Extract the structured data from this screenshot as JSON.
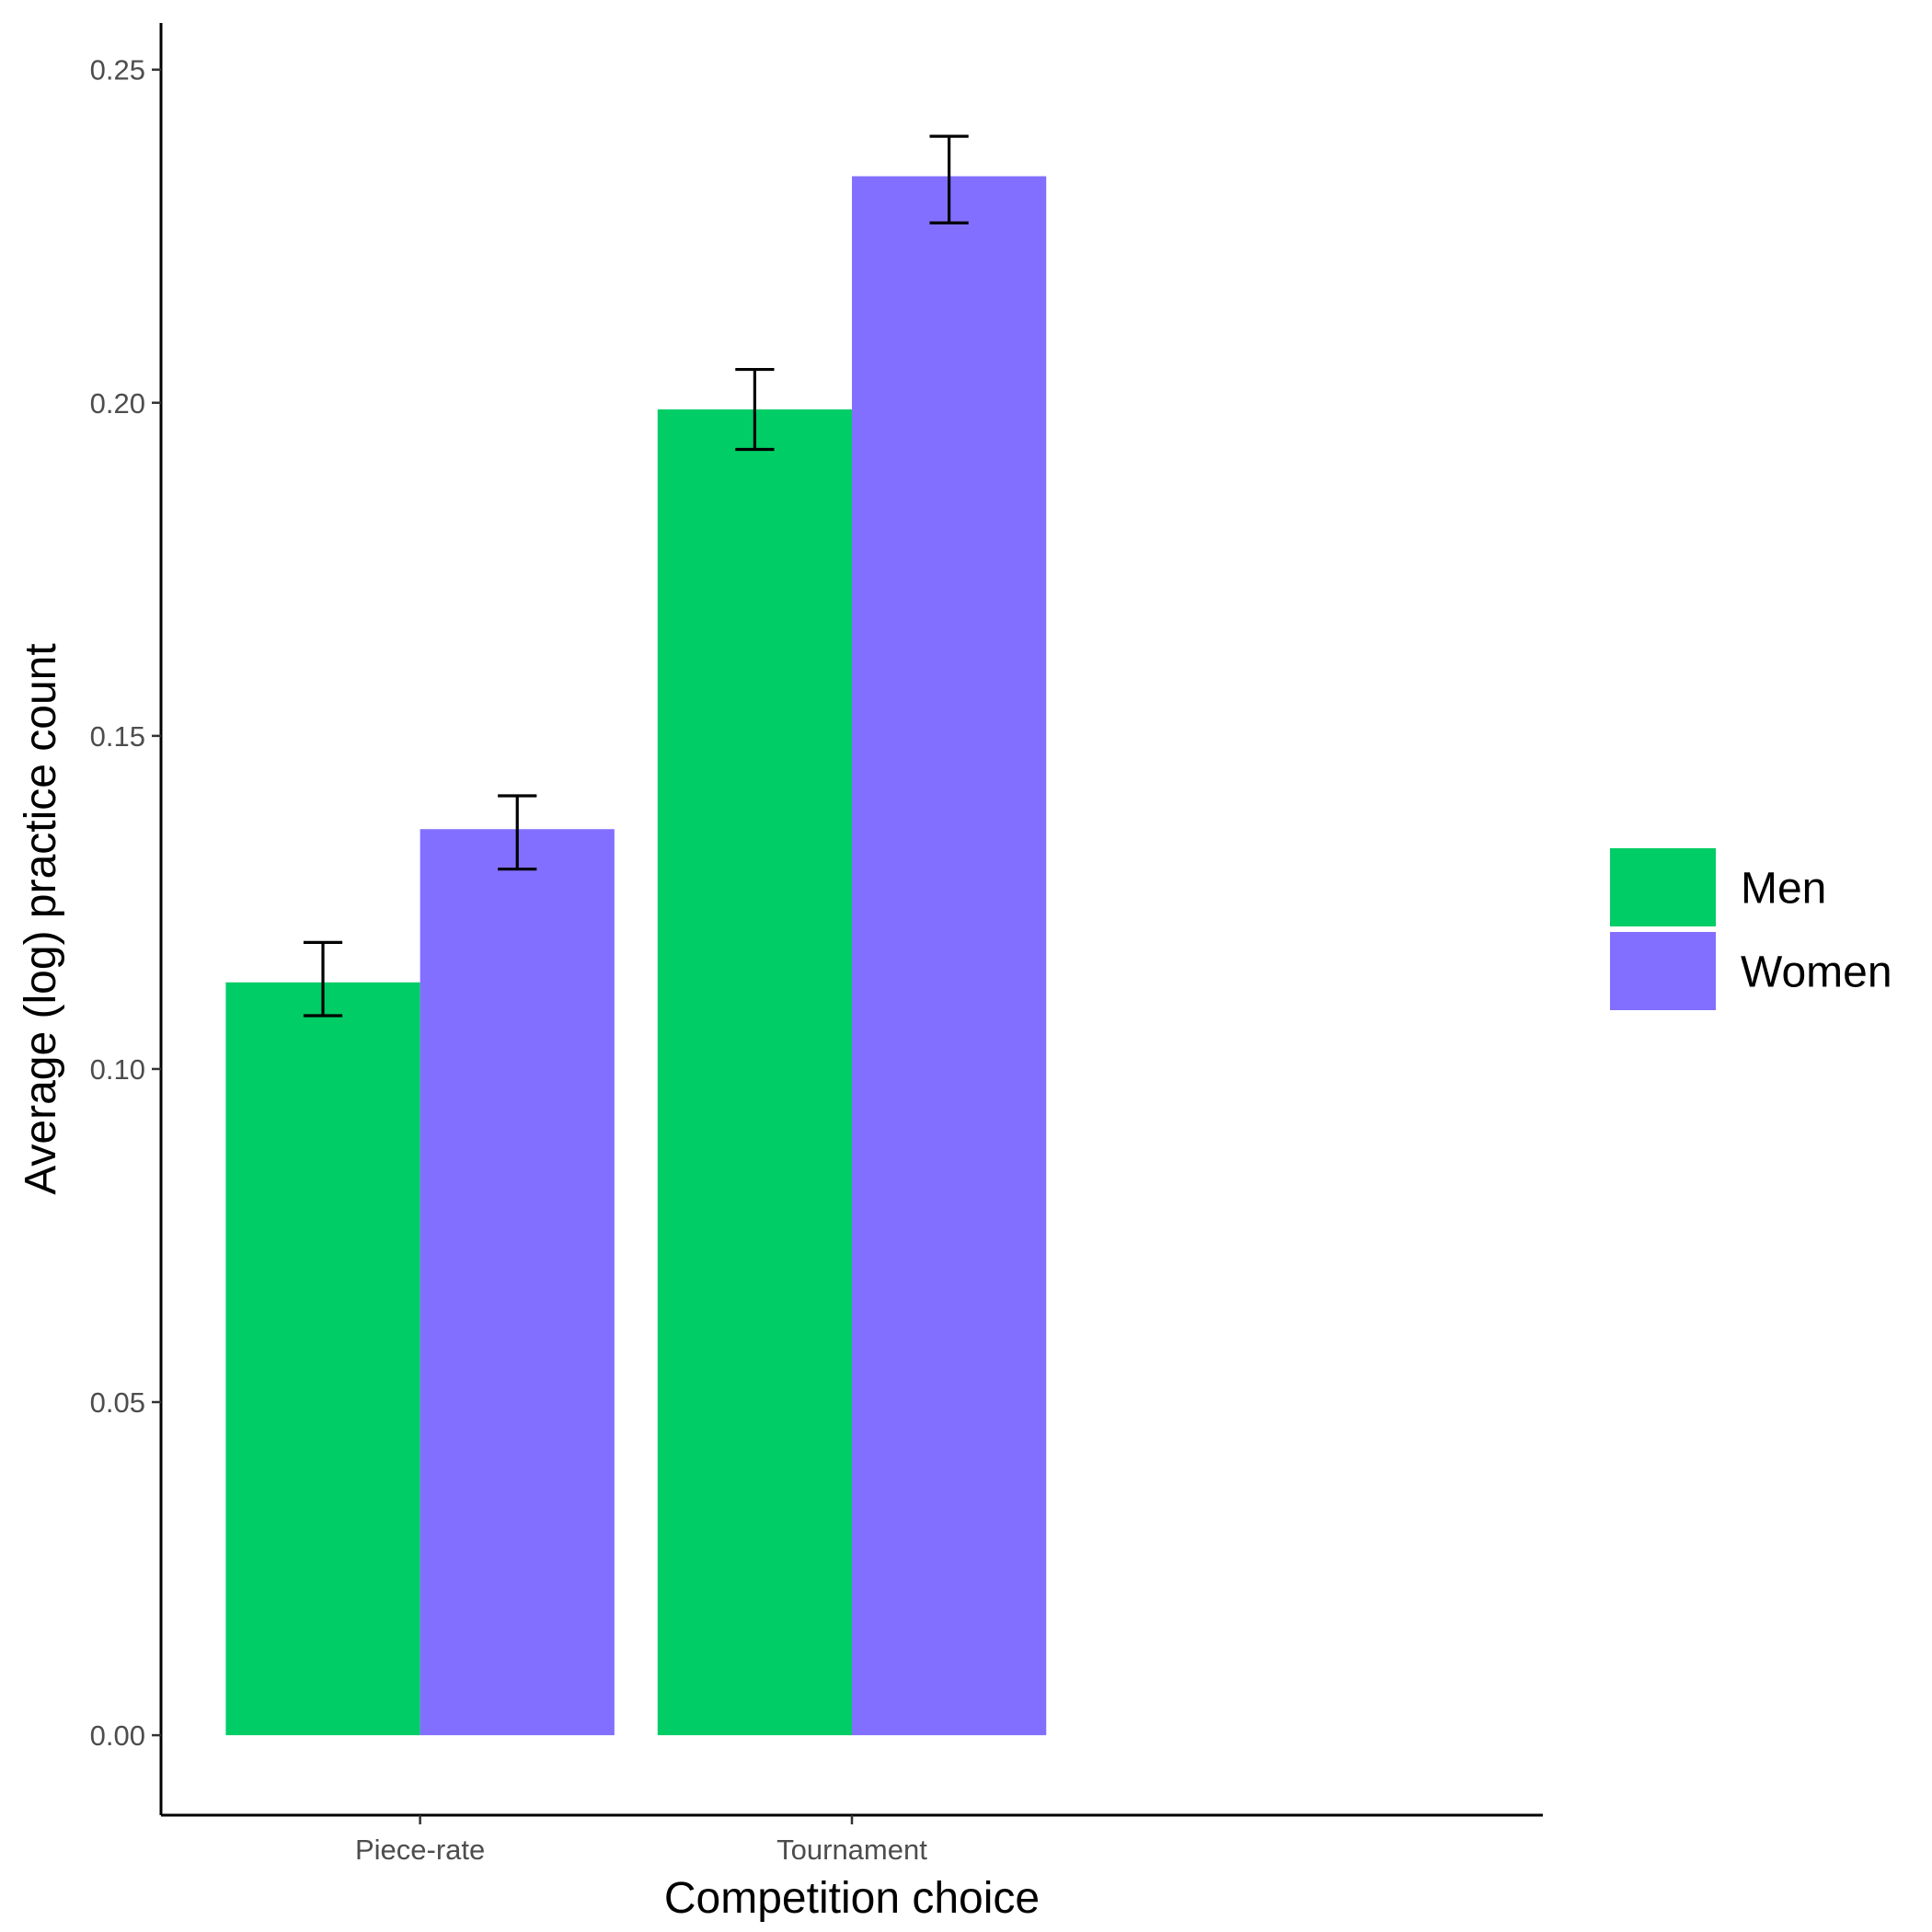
{
  "chart_data": {
    "type": "bar",
    "title": "",
    "xlabel": "Competition choice",
    "ylabel": "Average (log) practice count",
    "categories": [
      "Piece-rate",
      "Tournament"
    ],
    "series": [
      {
        "name": "Men",
        "color": "#00CD66",
        "values": [
          0.113,
          0.199
        ],
        "error_low": [
          0.108,
          0.193
        ],
        "error_high": [
          0.119,
          0.205
        ]
      },
      {
        "name": "Women",
        "color": "#836FFF",
        "values": [
          0.136,
          0.234
        ],
        "error_low": [
          0.13,
          0.227
        ],
        "error_high": [
          0.141,
          0.24
        ]
      }
    ],
    "ylim": [
      -0.012,
      0.257
    ],
    "yticks": [
      0.0,
      0.05,
      0.1,
      0.15,
      0.2,
      0.25
    ],
    "ytick_labels": [
      "0.00",
      "0.05",
      "0.10",
      "0.15",
      "0.20",
      "0.25"
    ],
    "grid": false,
    "legend_position": "right"
  }
}
